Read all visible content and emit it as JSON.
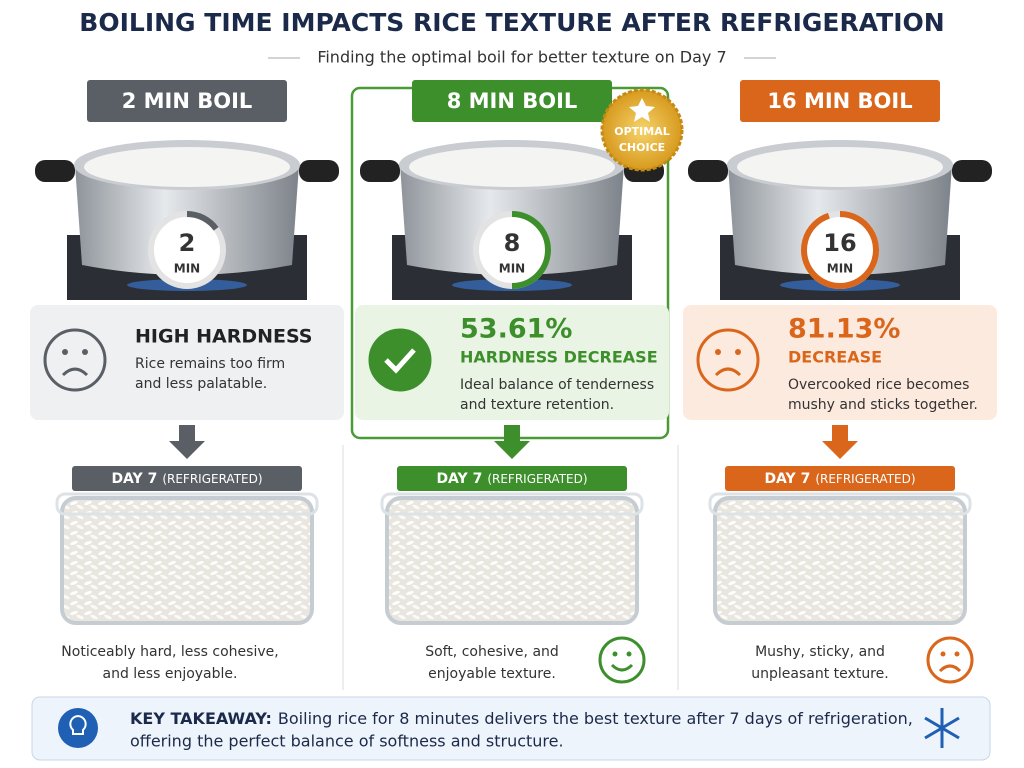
{
  "header": {
    "title": "BOILING TIME IMPACTS RICE TEXTURE AFTER REFRIGERATION",
    "subtitle": "Finding the optimal boil for better texture on Day 7"
  },
  "columns": [
    {
      "label": "2 MIN BOIL",
      "timer_value": "2",
      "timer_unit": "MIN",
      "result_title": "HIGH HARDNESS",
      "result_text": [
        "Rice remains too firm",
        "and less palatable."
      ],
      "day_label": "DAY 7",
      "day_note": "(REFRIGERATED)",
      "outcome": [
        "Noticeably hard, less cohesive,",
        "and less enjoyable."
      ]
    },
    {
      "label": "8 MIN BOIL",
      "badge": [
        "OPTIMAL",
        "CHOICE"
      ],
      "timer_value": "8",
      "timer_unit": "MIN",
      "result_value": "53.61%",
      "result_title": "HARDNESS DECREASE",
      "result_text": [
        "Ideal balance of tenderness",
        "and texture retention."
      ],
      "day_label": "DAY 7",
      "day_note": "(REFRIGERATED)",
      "outcome": [
        "Soft, cohesive, and",
        "enjoyable texture."
      ]
    },
    {
      "label": "16 MIN BOIL",
      "timer_value": "16",
      "timer_unit": "MIN",
      "result_value": "81.13%",
      "result_title": "DECREASE",
      "result_text": [
        "Overcooked rice becomes",
        "mushy and sticks together."
      ],
      "day_label": "DAY 7",
      "day_note": "(REFRIGERATED)",
      "outcome": [
        "Mushy, sticky, and",
        "unpleasant texture."
      ]
    }
  ],
  "takeaway": {
    "label": "KEY TAKEAWAY:",
    "lines": [
      "Boiling rice for 8 minutes delivers the best texture after 7 days of refrigeration,",
      "offering the perfect balance of softness and structure."
    ]
  }
}
